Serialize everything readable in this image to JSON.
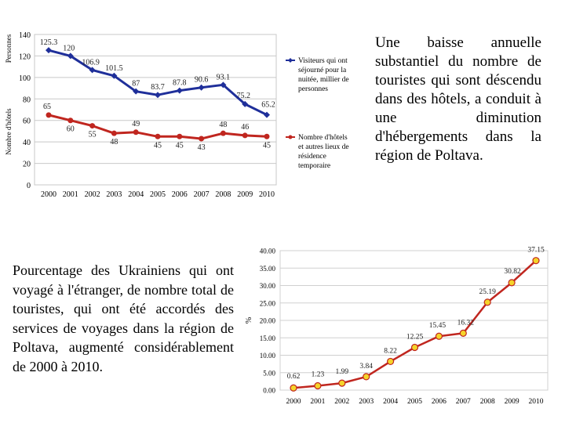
{
  "chart_data": [
    {
      "type": "line",
      "title": "",
      "ylabel_outer": "Personnes",
      "ylabel_inner": "Nombre d'hôtels",
      "xlabel": "",
      "categories": [
        "2000",
        "2001",
        "2002",
        "2003",
        "2004",
        "2005",
        "2006",
        "2007",
        "2008",
        "2009",
        "2010"
      ],
      "ylim": [
        0,
        140
      ],
      "yticks": [
        "0",
        "20",
        "40",
        "60",
        "80",
        "100",
        "120",
        "140"
      ],
      "grid": true,
      "legend_position": "right",
      "series": [
        {
          "name": "Visiteurs qui ont séjourné pour la nuitée, millier de personnes",
          "legend_lines": [
            "Visiteurs qui ont",
            "séjourné pour la",
            "nuitée, millier de",
            "personnes"
          ],
          "color": "#1f2f9a",
          "marker": "diamond",
          "values": [
            125.3,
            120,
            106.9,
            101.5,
            87,
            83.7,
            87.8,
            90.6,
            93.1,
            75.2,
            65.2
          ],
          "labels": [
            "125.3",
            "120",
            "106.9",
            "101.5",
            "87",
            "83.7",
            "87.8",
            "90.6",
            "93.1",
            "75.2",
            "65.2"
          ]
        },
        {
          "name": "Nombre d'hôtels et autres lieux de résidence temporaire",
          "legend_lines": [
            "Nombre d'hôtels",
            "et autres lieux de",
            "résidence",
            "temporaire"
          ],
          "color": "#c0261f",
          "marker": "circle",
          "values": [
            65,
            60,
            55,
            48,
            49,
            45,
            45,
            43,
            48,
            46,
            45
          ],
          "labels": [
            "65",
            "60",
            "55",
            "48",
            "49",
            "45",
            "45",
            "43",
            "48",
            "46",
            "45"
          ]
        }
      ]
    },
    {
      "type": "line",
      "title": "",
      "ylabel": "%",
      "xlabel": "",
      "categories": [
        "2000",
        "2001",
        "2002",
        "2003",
        "2004",
        "2005",
        "2006",
        "2007",
        "2008",
        "2009",
        "2010"
      ],
      "ylim": [
        0,
        40
      ],
      "yticks": [
        "0.00",
        "5.00",
        "10.00",
        "15.00",
        "20.00",
        "25.00",
        "30.00",
        "35.00",
        "40.00"
      ],
      "grid": true,
      "series": [
        {
          "name": "Pourcentage",
          "color": "#c0261f",
          "marker_fill": "#f5d42a",
          "values": [
            0.62,
            1.23,
            1.99,
            3.84,
            8.22,
            12.25,
            15.45,
            16.32,
            25.19,
            30.82,
            37.15
          ],
          "labels": [
            "0.62",
            "1.23",
            "1.99",
            "3.84",
            "8.22",
            "12.25",
            "15.45",
            "16.32",
            "25.19",
            "30.82",
            "37.15"
          ]
        }
      ]
    }
  ],
  "texts": {
    "top_right": "Une baisse annuelle substantiel du nombre de touristes qui sont déscendu dans des hôtels, a conduit à une diminution d'hébergements dans la région de Poltava.",
    "bottom_left": "Pourcentage des Ukrainiens qui ont voyagé à l'étranger, de nombre total de touristes, qui ont été accordés des services de voyages dans la région de Poltava, augmenté considérablement de 2000 à 2010."
  }
}
